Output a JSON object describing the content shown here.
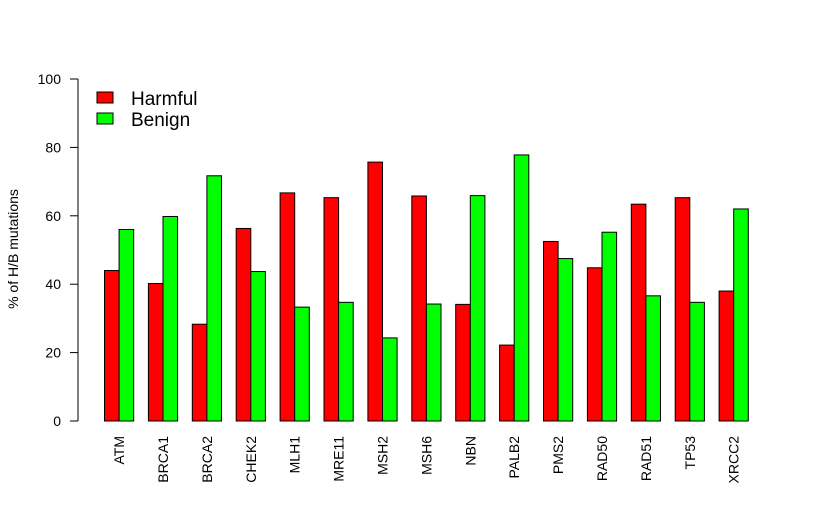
{
  "chart_data": {
    "type": "bar",
    "title": "",
    "xlabel": "",
    "ylabel": "% of H/B mutations",
    "ylim": [
      0,
      100
    ],
    "yticks": [
      0,
      20,
      40,
      60,
      80,
      100
    ],
    "grid": false,
    "legend_position": "top-left",
    "categories": [
      "ATM",
      "BRCA1",
      "BRCA2",
      "CHEK2",
      "MLH1",
      "MRE11",
      "MSH2",
      "MSH6",
      "NBN",
      "PALB2",
      "PMS2",
      "RAD50",
      "RAD51",
      "TP53",
      "XRCC2"
    ],
    "series": [
      {
        "name": "Harmful",
        "color": "#ff0000",
        "values": [
          44,
          40.2,
          28.3,
          56.3,
          66.7,
          65.3,
          75.7,
          65.8,
          34.1,
          22.2,
          52.5,
          44.8,
          63.4,
          65.3,
          38
        ]
      },
      {
        "name": "Benign",
        "color": "#00ff00",
        "values": [
          56,
          59.8,
          71.7,
          43.7,
          33.3,
          34.7,
          24.3,
          34.2,
          65.9,
          77.8,
          47.5,
          55.2,
          36.6,
          34.7,
          62
        ]
      }
    ]
  }
}
